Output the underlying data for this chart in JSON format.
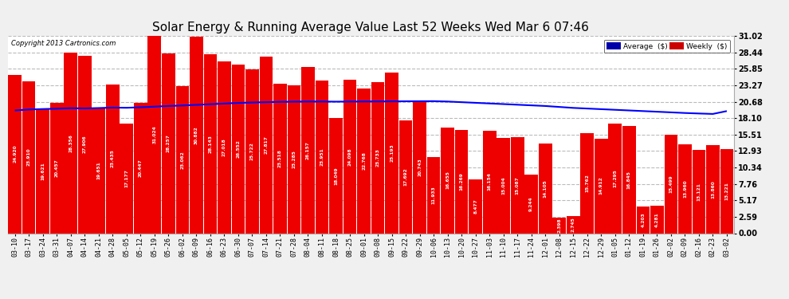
{
  "title": "Solar Energy & Running Average Value Last 52 Weeks Wed Mar 6 07:46",
  "copyright": "Copyright 2013 Cartronics.com",
  "bar_color": "#ee0000",
  "avg_line_color": "#0000ff",
  "background_color": "#f0f0f0",
  "plot_bg_color": "#ffffff",
  "grid_color": "#bbbbbb",
  "legend_avg_bg": "#0000aa",
  "legend_weekly_bg": "#cc0000",
  "ylim": [
    0.0,
    31.02
  ],
  "yticks": [
    0.0,
    2.59,
    5.17,
    7.76,
    10.34,
    12.93,
    15.51,
    18.1,
    20.68,
    23.27,
    25.85,
    28.44,
    31.02
  ],
  "categories": [
    "03-10",
    "03-17",
    "03-24",
    "03-31",
    "04-07",
    "04-14",
    "04-21",
    "04-28",
    "05-05",
    "05-12",
    "05-19",
    "05-26",
    "06-02",
    "06-09",
    "06-16",
    "06-23",
    "06-30",
    "07-07",
    "07-14",
    "07-21",
    "07-28",
    "08-04",
    "08-11",
    "08-18",
    "08-25",
    "09-01",
    "09-08",
    "09-15",
    "09-22",
    "09-29",
    "10-06",
    "10-13",
    "10-20",
    "10-27",
    "11-03",
    "11-10",
    "11-17",
    "11-24",
    "12-01",
    "12-08",
    "12-15",
    "12-22",
    "12-29",
    "01-05",
    "01-12",
    "01-19",
    "01-26",
    "02-02",
    "02-09",
    "02-16",
    "02-23",
    "03-02"
  ],
  "values": [
    24.92,
    23.91,
    19.621,
    20.457,
    28.356,
    27.906,
    19.651,
    23.435,
    17.177,
    20.447,
    31.024,
    28.257,
    23.062,
    30.882,
    28.143,
    27.018,
    26.552,
    25.722,
    27.817,
    23.518,
    23.285,
    26.157,
    23.951,
    18.049,
    24.098,
    22.768,
    23.733,
    25.193,
    17.692,
    20.743,
    11.933,
    16.655,
    16.269,
    8.477,
    16.154,
    15.004,
    15.087,
    9.244,
    14.105,
    2.398,
    2.745,
    15.762,
    14.912,
    17.295,
    16.845,
    4.203,
    4.281,
    15.499,
    13.96,
    13.121,
    13.86,
    13.221
  ],
  "avg_values": [
    19.3,
    19.45,
    19.52,
    19.58,
    19.65,
    19.62,
    19.68,
    19.75,
    19.72,
    19.8,
    19.9,
    20.0,
    20.08,
    20.18,
    20.28,
    20.38,
    20.48,
    20.55,
    20.6,
    20.65,
    20.68,
    20.7,
    20.7,
    20.68,
    20.7,
    20.71,
    20.72,
    20.73,
    20.74,
    20.75,
    20.76,
    20.7,
    20.6,
    20.5,
    20.4,
    20.3,
    20.2,
    20.1,
    20.0,
    19.85,
    19.7,
    19.6,
    19.5,
    19.4,
    19.3,
    19.2,
    19.1,
    19.0,
    18.9,
    18.82,
    18.75,
    19.2
  ],
  "bar_label_fontsize": 4.2,
  "title_fontsize": 11,
  "tick_fontsize": 6.0,
  "ytick_fontsize": 7.0
}
